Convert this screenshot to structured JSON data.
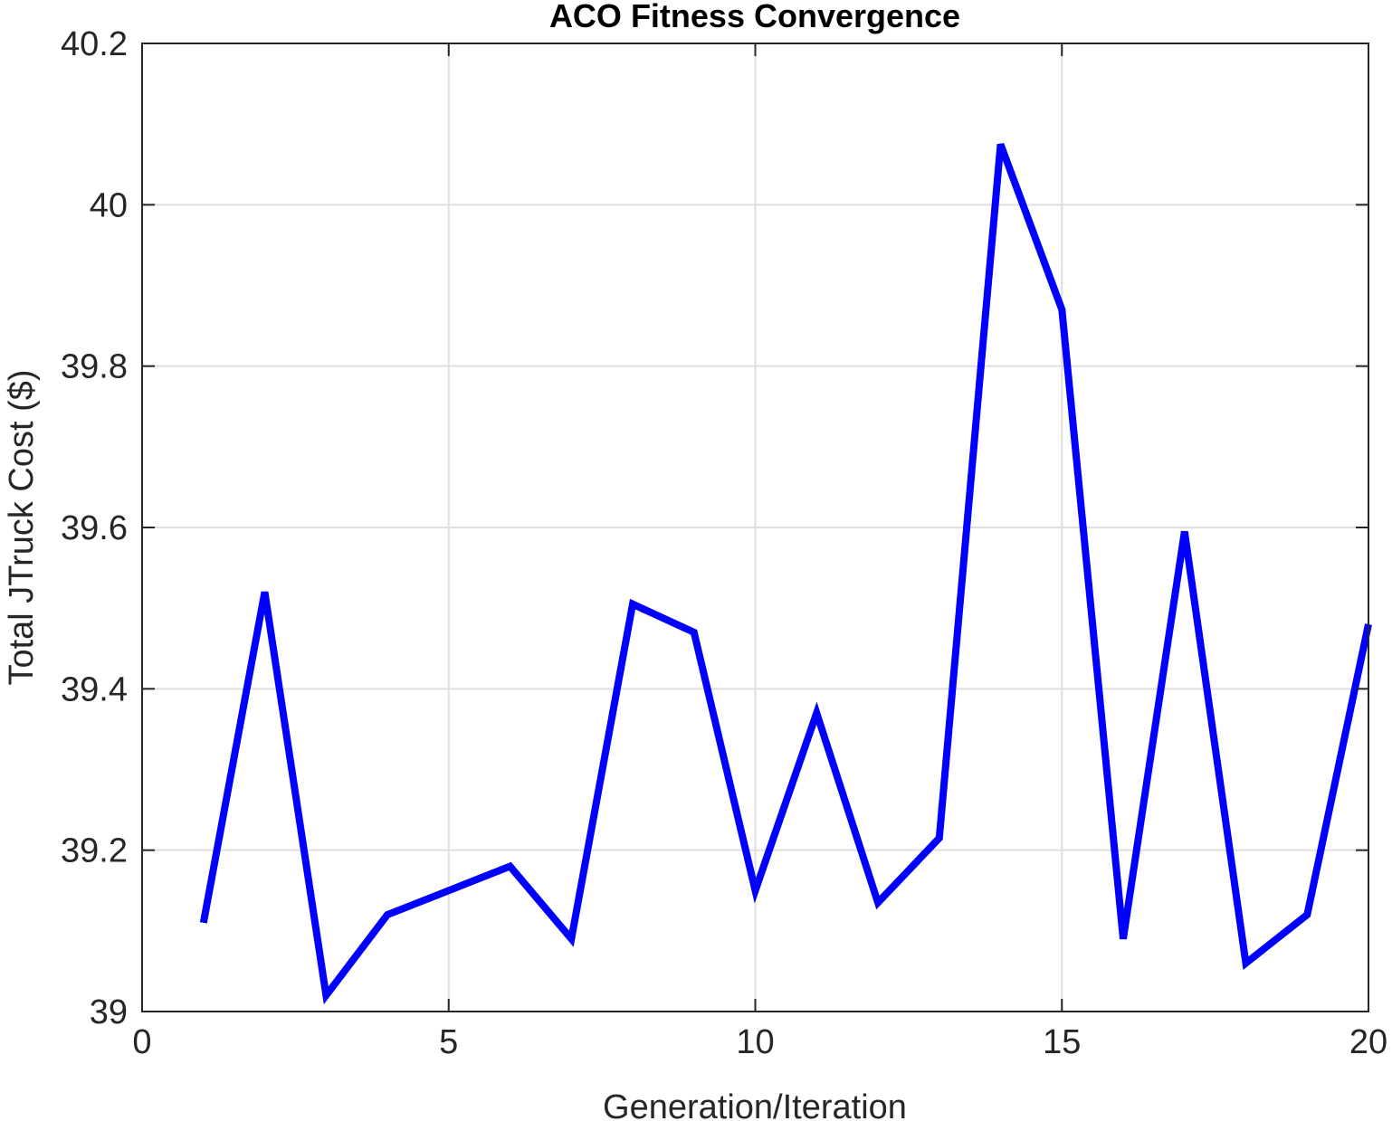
{
  "chart_data": {
    "type": "line",
    "title": "ACO Fitness Convergence",
    "xlabel": "Generation/Iteration",
    "ylabel": "Total JTruck Cost ($)",
    "xlim": [
      0,
      20
    ],
    "ylim": [
      39,
      40.2
    ],
    "xticks": [
      0,
      5,
      10,
      15,
      20
    ],
    "xtick_labels": [
      "0",
      "5",
      "10",
      "15",
      "20"
    ],
    "yticks": [
      39,
      39.2,
      39.4,
      39.6,
      39.8,
      40,
      40.2
    ],
    "ytick_labels": [
      "39",
      "39.2",
      "39.4",
      "39.6",
      "39.8",
      "40",
      "40.2"
    ],
    "grid": true,
    "series": [
      {
        "name": "fitness",
        "color": "#0000FF",
        "x": [
          1,
          2,
          3,
          4,
          5,
          6,
          7,
          8,
          9,
          10,
          11,
          12,
          13,
          14,
          15,
          16,
          17,
          18,
          19,
          20
        ],
        "values": [
          39.11,
          39.52,
          39.02,
          39.12,
          39.15,
          39.18,
          39.09,
          39.505,
          39.47,
          39.15,
          39.37,
          39.135,
          39.215,
          40.075,
          39.87,
          39.09,
          39.595,
          39.06,
          39.12,
          39.48
        ]
      }
    ]
  }
}
